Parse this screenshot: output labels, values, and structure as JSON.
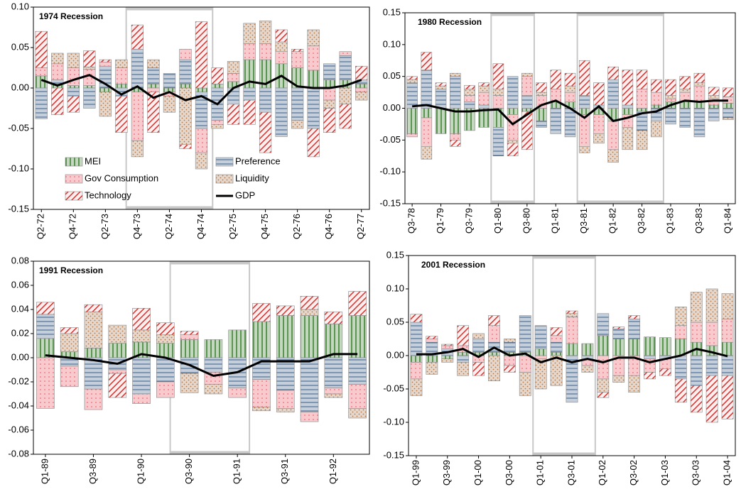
{
  "chart_data": [
    {
      "type": "bar",
      "title": "1974 Recession",
      "categories": [
        "Q2-72",
        null,
        "Q4-72",
        null,
        "Q2-73",
        null,
        "Q4-73",
        null,
        "Q2-74",
        null,
        "Q4-74",
        null,
        "Q2-75",
        null,
        "Q4-75",
        null,
        "Q2-76",
        null,
        "Q4-76",
        null,
        "Q2-77"
      ],
      "series": [
        {
          "name": "MEI",
          "color": "#3a7d2c",
          "values": [
            0.015,
            0.005,
            0.003,
            0.003,
            -0.005,
            0.005,
            -0.005,
            0.005,
            -0.005,
            0.005,
            -0.005,
            0.005,
            0.008,
            0.035,
            0.035,
            0.03,
            0.025,
            0.022,
            0.01,
            0.01,
            0.005
          ]
        },
        {
          "name": "Preference",
          "color": "#3b5f8a",
          "values": [
            -0.038,
            0.005,
            -0.01,
            -0.025,
            0.027,
            -0.01,
            0.048,
            0.02,
            0.018,
            0.03,
            -0.045,
            -0.04,
            -0.02,
            -0.015,
            -0.03,
            -0.06,
            -0.04,
            -0.05,
            0.02,
            0.03,
            0.005
          ]
        },
        {
          "name": "Gov Consumption",
          "color": "#e8505b",
          "values": [
            0.01,
            0.02,
            0.022,
            0.02,
            0.005,
            0.02,
            -0.06,
            -0.005,
            -0.005,
            0.013,
            -0.03,
            -0.005,
            0.01,
            0.02,
            0.02,
            0.015,
            0.02,
            0.03,
            -0.015,
            0.005,
            -0.005
          ]
        },
        {
          "name": "Liquidity",
          "color": "#b07a50",
          "values": [
            0,
            0.013,
            0.018,
            0.003,
            -0.03,
            0.01,
            -0.02,
            0.01,
            -0.02,
            -0.07,
            -0.02,
            -0.005,
            0.015,
            0.025,
            0.028,
            0.012,
            -0.01,
            0.02,
            -0.01,
            -0.02,
            -0.01
          ]
        },
        {
          "name": "Technology",
          "color": "#d9302c",
          "values": [
            0.045,
            -0.033,
            -0.02,
            0.02,
            0.003,
            -0.045,
            0.03,
            -0.05,
            0,
            -0.005,
            0.082,
            0.02,
            -0.025,
            -0.03,
            -0.05,
            0.015,
            0.003,
            -0.035,
            -0.03,
            -0.03,
            0.017
          ]
        },
        {
          "name": "GDP",
          "color": "#000000",
          "type": "line",
          "values": [
            0.01,
            0.003,
            0.01,
            0.016,
            0.005,
            -0.008,
            0.002,
            -0.012,
            -0.005,
            -0.015,
            -0.01,
            -0.02,
            0,
            0.008,
            0.005,
            0.015,
            0.002,
            0,
            0,
            0.003,
            0.01
          ]
        }
      ],
      "ylim": [
        -0.15,
        0.1
      ],
      "yticks": [
        -0.15,
        {
          "value": -0.1,
          "label": "-0.10"
        },
        -0.05,
        {
          "value": 0,
          "label": "0.00"
        },
        0.05,
        {
          "value": 0.1,
          "label": "0.10"
        }
      ]
    },
    {
      "type": "bar",
      "title": "1980 Recession",
      "categories": [
        "Q3-78",
        null,
        "Q1-79",
        null,
        "Q3-79",
        null,
        "Q1-80",
        null,
        "Q3-80",
        null,
        "Q1-81",
        null,
        "Q3-81",
        null,
        "Q1-82",
        null,
        "Q3-82",
        null,
        "Q1-83",
        null,
        "Q3-83",
        null,
        "Q1-84"
      ],
      "series": [
        {
          "values": [
            -0.04,
            -0.015,
            -0.04,
            -0.04,
            -0.035,
            -0.03,
            -0.03,
            -0.01,
            -0.005,
            -0.02,
            0.01,
            0.01,
            -0.01,
            -0.01,
            -0.02,
            -0.01,
            -0.005,
            0.005,
            0.01,
            0.01,
            0.01,
            0.005,
            0.008
          ]
        },
        {
          "values": [
            0.04,
            0.06,
            0.03,
            0.05,
            0.01,
            0.005,
            -0.045,
            0.05,
            0.02,
            -0.01,
            -0.04,
            -0.045,
            0.02,
            0.005,
            0.045,
            0.005,
            -0.03,
            -0.02,
            -0.025,
            -0.03,
            -0.045,
            -0.02,
            -0.015
          ]
        },
        {
          "values": [
            -0.005,
            -0.045,
            0,
            -0.01,
            0.01,
            0.02,
            0.02,
            -0.04,
            0.03,
            0.02,
            0.02,
            0.015,
            -0.05,
            -0.03,
            -0.045,
            -0.02,
            0.03,
            0.02,
            0.005,
            0.015,
            0.025,
            0.01,
            0.01
          ]
        },
        {
          "values": [
            0.005,
            -0.02,
            0.005,
            0.005,
            0.01,
            0.01,
            0.01,
            -0.005,
            0.005,
            0.005,
            0,
            0.01,
            -0.01,
            -0.015,
            -0.02,
            -0.035,
            -0.03,
            -0.025,
            0.005,
            0.005,
            0.005,
            0.005,
            -0.003
          ]
        },
        {
          "values": [
            0.005,
            0.028,
            0.005,
            -0.01,
            0.006,
            0.005,
            0.04,
            -0.02,
            -0.06,
            0.015,
            0.03,
            0.02,
            0.055,
            0.035,
            0.02,
            0.055,
            0.03,
            0.02,
            0.025,
            0.02,
            0.015,
            0.013,
            0.014
          ]
        },
        {
          "values": [
            0.003,
            0.005,
            0,
            -0.005,
            -0.005,
            -0.003,
            -0.002,
            -0.025,
            -0.01,
            0.005,
            0.012,
            0,
            -0.015,
            0.003,
            -0.02,
            -0.015,
            -0.008,
            -0.005,
            0.005,
            0.012,
            0.01,
            0.012,
            0.012
          ]
        }
      ],
      "ylim": [
        -0.15,
        0.15
      ],
      "yticks": [
        -0.15,
        {
          "value": -0.1,
          "label": "-0.10"
        },
        -0.05,
        {
          "value": 0,
          "label": "0.00"
        },
        0.05,
        {
          "value": 0.1,
          "label": "0.10"
        },
        0.15
      ]
    },
    {
      "type": "bar",
      "title": "1991 Recession",
      "categories": [
        "Q1-89",
        null,
        "Q3-89",
        null,
        "Q1-90",
        null,
        "Q3-90",
        null,
        "Q1-91",
        null,
        "Q3-91",
        null,
        "Q1-92",
        null
      ],
      "series": [
        {
          "values": [
            0.016,
            0.005,
            0.008,
            0.012,
            0.013,
            0.012,
            0.015,
            0.015,
            0.023,
            0.03,
            0.035,
            0.035,
            0.028,
            0.035
          ]
        },
        {
          "values": [
            0.02,
            -0.007,
            -0.026,
            -0.01,
            -0.03,
            -0.02,
            -0.013,
            -0.012,
            -0.025,
            -0.018,
            -0.027,
            -0.045,
            -0.025,
            -0.022
          ]
        },
        {
          "values": [
            -0.042,
            -0.017,
            -0.017,
            -0.003,
            -0.008,
            -0.013,
            0.004,
            -0.01,
            -0.008,
            -0.023,
            -0.015,
            -0.008,
            -0.005,
            -0.02
          ]
        },
        {
          "values": [
            0,
            0.015,
            0.03,
            0.015,
            0.01,
            0.007,
            -0.016,
            -0.008,
            0,
            -0.003,
            -0.003,
            0.005,
            -0.003,
            -0.008
          ]
        },
        {
          "values": [
            0.01,
            0.005,
            0.006,
            -0.02,
            0.018,
            0.01,
            0.003,
            0,
            0,
            0.015,
            0.008,
            0.011,
            0.01,
            0.02
          ]
        },
        {
          "values": [
            0.002,
            0,
            -0.002,
            -0.005,
            0.003,
            0,
            -0.006,
            -0.015,
            -0.012,
            -0.003,
            -0.003,
            -0.003,
            0.003,
            0.003
          ]
        }
      ],
      "ylim": [
        -0.08,
        0.08
      ],
      "yticks": [
        -0.08,
        -0.06,
        -0.04,
        -0.02,
        {
          "value": 0,
          "label": "0.00"
        },
        0.02,
        0.04,
        0.06,
        0.08
      ]
    },
    {
      "type": "bar",
      "title": "2001 Recession",
      "categories": [
        "Q1-99",
        null,
        "Q3-99",
        null,
        "Q1-00",
        null,
        "Q3-00",
        null,
        "Q1-01",
        null,
        "Q3-01",
        null,
        "Q1-02",
        null,
        "Q3-02",
        null,
        "Q1-03",
        null,
        "Q3-03",
        null,
        "Q1-04"
      ],
      "series": [
        {
          "values": [
            -0.01,
            -0.01,
            -0.005,
            0.005,
            0.005,
            0.005,
            0.005,
            0.005,
            0.01,
            0.005,
            0.018,
            0.018,
            0.03,
            0.025,
            0.025,
            0.028,
            0.027,
            0.025,
            0.02,
            0.015,
            0.02
          ]
        },
        {
          "values": [
            0.05,
            0.02,
            0.01,
            -0.01,
            0.02,
            0.015,
            0.015,
            0.055,
            0.035,
            0.015,
            -0.07,
            -0.005,
            0.033,
            0.015,
            0.03,
            -0.005,
            -0.005,
            -0.035,
            -0.045,
            -0.03,
            -0.03
          ]
        },
        {
          "values": [
            -0.025,
            0.005,
            0.005,
            0.01,
            -0.01,
            0.025,
            -0.015,
            -0.025,
            -0.005,
            0.01,
            0.04,
            -0.01,
            -0.035,
            -0.03,
            -0.03,
            -0.02,
            -0.015,
            0.02,
            0.03,
            0.035,
            0.035
          ]
        },
        {
          "values": [
            -0.025,
            -0.018,
            -0.005,
            -0.02,
            0.008,
            -0.038,
            0.005,
            -0.035,
            -0.045,
            -0.045,
            0.005,
            -0.01,
            -0.02,
            -0.01,
            -0.025,
            0,
            0,
            0.028,
            0.045,
            0.05,
            0.038
          ]
        },
        {
          "values": [
            0.012,
            0.004,
            0.002,
            0.03,
            -0.02,
            0.015,
            -0.01,
            0,
            0,
            0.012,
            0.004,
            0,
            -0.008,
            0.003,
            0.005,
            -0.01,
            -0.01,
            -0.035,
            -0.04,
            -0.07,
            -0.065
          ]
        },
        {
          "values": [
            0.002,
            0.002,
            0.005,
            0.01,
            -0.002,
            0.012,
            0,
            0.003,
            -0.01,
            -0.003,
            -0.01,
            -0.005,
            -0.01,
            -0.003,
            -0.003,
            -0.01,
            -0.005,
            0,
            0.01,
            0.005,
            -0.001
          ]
        }
      ],
      "ylim": [
        -0.15,
        0.15
      ],
      "yticks": [
        -0.15,
        {
          "value": -0.1,
          "label": "-0.10"
        },
        -0.05,
        {
          "value": 0,
          "label": "0.00"
        },
        0.05,
        {
          "value": 0.1,
          "label": "0.10"
        },
        0.15
      ]
    }
  ]
}
